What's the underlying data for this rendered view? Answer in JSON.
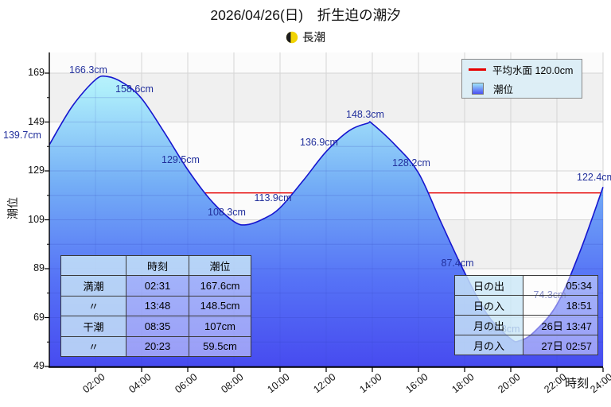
{
  "title": "2026/04/26(日)　折生迫の潮汐",
  "subtitle": {
    "moon_icon": "moon-phase-icon",
    "moon_phase_label": "長潮"
  },
  "legend": {
    "mean_line_label": "平均水面 120.0cm",
    "tide_label": "潮位"
  },
  "axes": {
    "y_title": "潮位",
    "x_title": "時刻",
    "y_ticks": [
      169,
      149,
      129,
      109,
      89,
      69,
      49
    ],
    "x_ticks": [
      {
        "hour": 2,
        "label": "02:00"
      },
      {
        "hour": 4,
        "label": "04:00"
      },
      {
        "hour": 6,
        "label": "06:00"
      },
      {
        "hour": 8,
        "label": "08:00"
      },
      {
        "hour": 10,
        "label": "10:00"
      },
      {
        "hour": 12,
        "label": "12:00"
      },
      {
        "hour": 14,
        "label": "14:00"
      },
      {
        "hour": 16,
        "label": "16:00"
      },
      {
        "hour": 18,
        "label": "18:00"
      },
      {
        "hour": 20,
        "label": "20:00"
      },
      {
        "hour": 22,
        "label": "22:00"
      },
      {
        "hour": 24,
        "label": "24:00"
      }
    ]
  },
  "chart_data": {
    "type": "area",
    "title": "2026/04/26(日) 折生迫の潮汐",
    "xlabel": "時刻",
    "ylabel": "潮位",
    "x_range_hours": [
      0,
      24
    ],
    "ylim": [
      49,
      177.5
    ],
    "grid": true,
    "legend_position": "top-right",
    "mean_water_level_cm": 120.0,
    "curve_points": [
      [
        0,
        139.7
      ],
      [
        1,
        155.5
      ],
      [
        2,
        166.3
      ],
      [
        2.52,
        167.6
      ],
      [
        3.2,
        165.0
      ],
      [
        4,
        158.6
      ],
      [
        5,
        144.5
      ],
      [
        6,
        129.5
      ],
      [
        7,
        117.0
      ],
      [
        8,
        108.3
      ],
      [
        8.58,
        107.0
      ],
      [
        9.3,
        109.5
      ],
      [
        10,
        113.9
      ],
      [
        11,
        125.0
      ],
      [
        12,
        136.9
      ],
      [
        13,
        145.5
      ],
      [
        13.8,
        148.5
      ],
      [
        14,
        148.3
      ],
      [
        15,
        139.5
      ],
      [
        16,
        128.2
      ],
      [
        17,
        107.5
      ],
      [
        18,
        87.4
      ],
      [
        19,
        70.0
      ],
      [
        20,
        60.3
      ],
      [
        20.38,
        59.5
      ],
      [
        21,
        63.0
      ],
      [
        22,
        74.3
      ],
      [
        23,
        96.0
      ],
      [
        24,
        122.4
      ]
    ],
    "annotations": [
      {
        "t": 0,
        "v": 139.7,
        "label": "139.7cm",
        "dx": -25
      },
      {
        "t": 2,
        "v": 166.3,
        "label": "166.3cm"
      },
      {
        "t": 4,
        "v": 158.6,
        "label": "158.6cm"
      },
      {
        "t": 6,
        "v": 129.5,
        "label": "129.5cm"
      },
      {
        "t": 8,
        "v": 108.3,
        "label": "108.3cm"
      },
      {
        "t": 10,
        "v": 113.9,
        "label": "113.9cm"
      },
      {
        "t": 12,
        "v": 136.9,
        "label": "136.9cm"
      },
      {
        "t": 14,
        "v": 148.3,
        "label": "148.3cm"
      },
      {
        "t": 16,
        "v": 128.2,
        "label": "128.2cm"
      },
      {
        "t": 18,
        "v": 87.4,
        "label": "87.4cm"
      },
      {
        "t": 20,
        "v": 60.3,
        "label": "60.3cm"
      },
      {
        "t": 22,
        "v": 74.3,
        "label": "74.3cm"
      },
      {
        "t": 24,
        "v": 122.4,
        "label": "122.4cm"
      }
    ]
  },
  "tide_table": {
    "headers": [
      "",
      "時刻",
      "潮位"
    ],
    "rows": [
      [
        "満潮",
        "02:31",
        "167.6cm"
      ],
      [
        "〃",
        "13:48",
        "148.5cm"
      ],
      [
        "干潮",
        "08:35",
        "107cm"
      ],
      [
        "〃",
        "20:23",
        "59.5cm"
      ]
    ]
  },
  "sun_moon_table": {
    "rows": [
      [
        "日の出",
        "05:34"
      ],
      [
        "日の入",
        "18:51"
      ],
      [
        "月の出",
        "26日 13:47"
      ],
      [
        "月の入",
        "27日 02:57"
      ]
    ]
  },
  "colors": {
    "mean_line": "#e60000",
    "curve_stroke": "#1616cf",
    "annotation_text": "#22309c",
    "grid_line": "#d5d5d5",
    "plot_bg": "#fbfbfb",
    "band_gray": "#f0f0f0",
    "fill_top": "#c8f6fd",
    "fill_upper": "#aeeefb",
    "fill_mid": "#74aef6",
    "fill_lower": "#5673f6",
    "fill_bottom": "#474bf0",
    "moon_yellow": "#f2d402",
    "moon_dark": "#1d1d1d"
  }
}
